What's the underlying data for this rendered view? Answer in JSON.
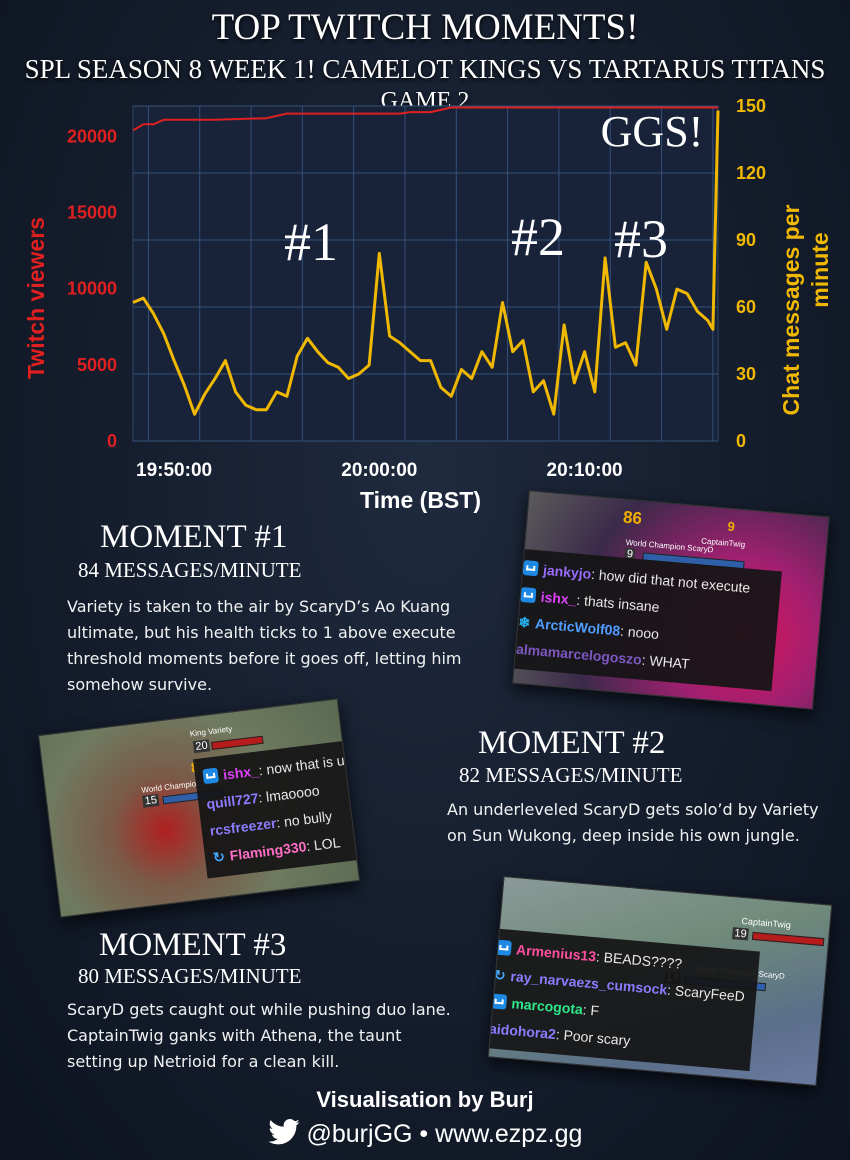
{
  "header": {
    "title": "TOP TWITCH MOMENTS!",
    "subtitle_line1": "SPL SEASON 8 WEEK 1! CAMELOT KINGS VS TARTARUS TITANS",
    "subtitle_line2": "GAME 2"
  },
  "chart_data": {
    "type": "line",
    "xlabel": "Time (BST)",
    "ylabel_left": "Twitch viewers",
    "ylabel_right": "Chat messages per minute",
    "x_ticks": [
      "19:50:00",
      "20:00:00",
      "20:10:00"
    ],
    "y_left_ticks": [
      "0",
      "5000",
      "10000",
      "15000",
      "20000"
    ],
    "y_right_ticks": [
      "0",
      "30",
      "60",
      "90",
      "120",
      "150"
    ],
    "ylim_left": [
      0,
      22000
    ],
    "ylim_right": [
      0,
      150
    ],
    "xlim": [
      "19:48:00",
      "20:16:30"
    ],
    "grid": true,
    "series": [
      {
        "name": "Twitch viewers",
        "axis": "left",
        "color": "#e02020",
        "points": [
          [
            "19:48:00",
            20400
          ],
          [
            "19:48:30",
            20800
          ],
          [
            "19:49:00",
            20800
          ],
          [
            "19:49:30",
            21100
          ],
          [
            "19:52:00",
            21100
          ],
          [
            "19:54:30",
            21200
          ],
          [
            "19:55:30",
            21500
          ],
          [
            "20:01:00",
            21500
          ],
          [
            "20:01:30",
            21600
          ],
          [
            "20:02:30",
            21600
          ],
          [
            "20:03:30",
            21900
          ],
          [
            "20:16:30",
            21900
          ]
        ]
      },
      {
        "name": "Chat messages per minute",
        "axis": "right",
        "color": "#f0b800",
        "points": [
          [
            "19:48:00",
            62
          ],
          [
            "19:48:30",
            64
          ],
          [
            "19:49:00",
            57
          ],
          [
            "19:49:30",
            48
          ],
          [
            "19:50:00",
            36
          ],
          [
            "19:50:30",
            25
          ],
          [
            "19:51:00",
            12
          ],
          [
            "19:51:30",
            21
          ],
          [
            "19:52:00",
            28
          ],
          [
            "19:52:30",
            36
          ],
          [
            "19:53:00",
            22
          ],
          [
            "19:53:30",
            16
          ],
          [
            "19:54:00",
            14
          ],
          [
            "19:54:30",
            14
          ],
          [
            "19:55:00",
            22
          ],
          [
            "19:55:30",
            20
          ],
          [
            "19:56:00",
            38
          ],
          [
            "19:56:30",
            46
          ],
          [
            "19:57:00",
            40
          ],
          [
            "19:57:30",
            35
          ],
          [
            "19:58:00",
            33
          ],
          [
            "19:58:30",
            28
          ],
          [
            "19:59:00",
            30
          ],
          [
            "19:59:30",
            34
          ],
          [
            "20:00:00",
            84
          ],
          [
            "20:00:30",
            47
          ],
          [
            "20:01:00",
            44
          ],
          [
            "20:01:30",
            40
          ],
          [
            "20:02:00",
            36
          ],
          [
            "20:02:30",
            36
          ],
          [
            "20:03:00",
            24
          ],
          [
            "20:03:30",
            20
          ],
          [
            "20:04:00",
            32
          ],
          [
            "20:04:30",
            28
          ],
          [
            "20:05:00",
            40
          ],
          [
            "20:05:30",
            33
          ],
          [
            "20:06:00",
            62
          ],
          [
            "20:06:30",
            40
          ],
          [
            "20:07:00",
            45
          ],
          [
            "20:07:30",
            22
          ],
          [
            "20:08:00",
            27
          ],
          [
            "20:08:30",
            12
          ],
          [
            "20:09:00",
            52
          ],
          [
            "20:09:30",
            26
          ],
          [
            "20:10:00",
            40
          ],
          [
            "20:10:30",
            22
          ],
          [
            "20:11:00",
            82
          ],
          [
            "20:11:30",
            42
          ],
          [
            "20:12:00",
            44
          ],
          [
            "20:12:30",
            34
          ],
          [
            "20:13:00",
            80
          ],
          [
            "20:13:30",
            68
          ],
          [
            "20:14:00",
            50
          ],
          [
            "20:14:30",
            68
          ],
          [
            "20:15:00",
            66
          ],
          [
            "20:15:30",
            58
          ],
          [
            "20:16:00",
            54
          ],
          [
            "20:16:15",
            50
          ],
          [
            "20:16:30",
            148
          ]
        ]
      }
    ],
    "annotations": [
      {
        "text": "#1",
        "at": "20:00:00"
      },
      {
        "text": "#2",
        "at": "20:11:00"
      },
      {
        "text": "#3",
        "at": "20:13:00"
      },
      {
        "text": "GGS!",
        "at": "20:16:30"
      }
    ]
  },
  "moments": [
    {
      "title": "MOMENT #1",
      "subtitle": "84 MESSAGES/MINUTE",
      "body": "Variety is taken to the air by ScaryD’s Ao Kuang ultimate, but his health ticks to 1 above execute threshold moments before it goes off, letting him somehow survive.",
      "screenshot": {
        "hud_name": "World Champion ScaryD",
        "hud_name2": "CaptainTwig",
        "hud_level": "9",
        "hud_numbers": [
          "86",
          "9"
        ],
        "chat": [
          {
            "user": "jankyjo",
            "text": ": how did that not execute",
            "color": "#9b6bff",
            "badge": "crown"
          },
          {
            "user": "ishx_",
            "text": ": thats insane",
            "color": "#e040fb",
            "badge": "crown"
          },
          {
            "user": "ArcticWolf08",
            "text": ": nooo",
            "color": "#4f9dff",
            "badge": "snowflake"
          },
          {
            "user": "almamarcelogoszo",
            "text": ": WHAT",
            "color": "#7e57c2",
            "badge": "none"
          }
        ]
      }
    },
    {
      "title": "MOMENT #2",
      "subtitle": "82 MESSAGES/MINUTE",
      "body": "An underleveled ScaryD gets solo’d by Variety on Sun Wukong, deep inside his own jungle.",
      "screenshot": {
        "hud_name": "World Champion ScaryD",
        "hud_name2": "King Variety",
        "hud_level": "15",
        "hud_level2": "20",
        "hud_numbers": [
          "8"
        ],
        "chat": [
          {
            "user": "ishx_",
            "text": ": now that is unfort man",
            "color": "#e040fb",
            "badge": "crown"
          },
          {
            "user": "quill727",
            "text": ": lmaoooo",
            "color": "#8c7cff",
            "badge": "none"
          },
          {
            "user": "rcsfreezer",
            "text": ": no bully",
            "color": "#8c7cff",
            "badge": "none"
          },
          {
            "user": "Flaming330",
            "text": ": LOL",
            "color": "#ff6ec7",
            "badge": "cycle"
          }
        ]
      }
    },
    {
      "title": "MOMENT #3",
      "subtitle": "80 MESSAGES/MINUTE",
      "body": "ScaryD gets caught out while pushing duo lane. CaptainTwig ganks with Athena, the taunt setting up Netrioid for a clean kill.",
      "screenshot": {
        "hud_name": "World Champion ScaryD",
        "hud_name2": "CaptainTwig",
        "hud_level": "17",
        "hud_level2": "19",
        "chat": [
          {
            "user": "Armenius13",
            "text": ": BEADS????",
            "color": "#ff4fa0",
            "badge": "crown"
          },
          {
            "user": "ray_narvaezs_cumsock",
            "text": ": ScaryFeeD",
            "color": "#8c7cff",
            "badge": "cycle"
          },
          {
            "user": "marcogota",
            "text": ": F",
            "color": "#2ee88a",
            "badge": "crown"
          },
          {
            "user": "aidohora2",
            "text": ": Poor scary",
            "color": "#8c7cff",
            "badge": "none"
          }
        ]
      }
    }
  ],
  "footer": {
    "credit_prefix": "Visualisation by ",
    "credit_name": "Burj",
    "handle": "@burjGG",
    "separator": "•",
    "site": "www.ezpz.gg"
  }
}
